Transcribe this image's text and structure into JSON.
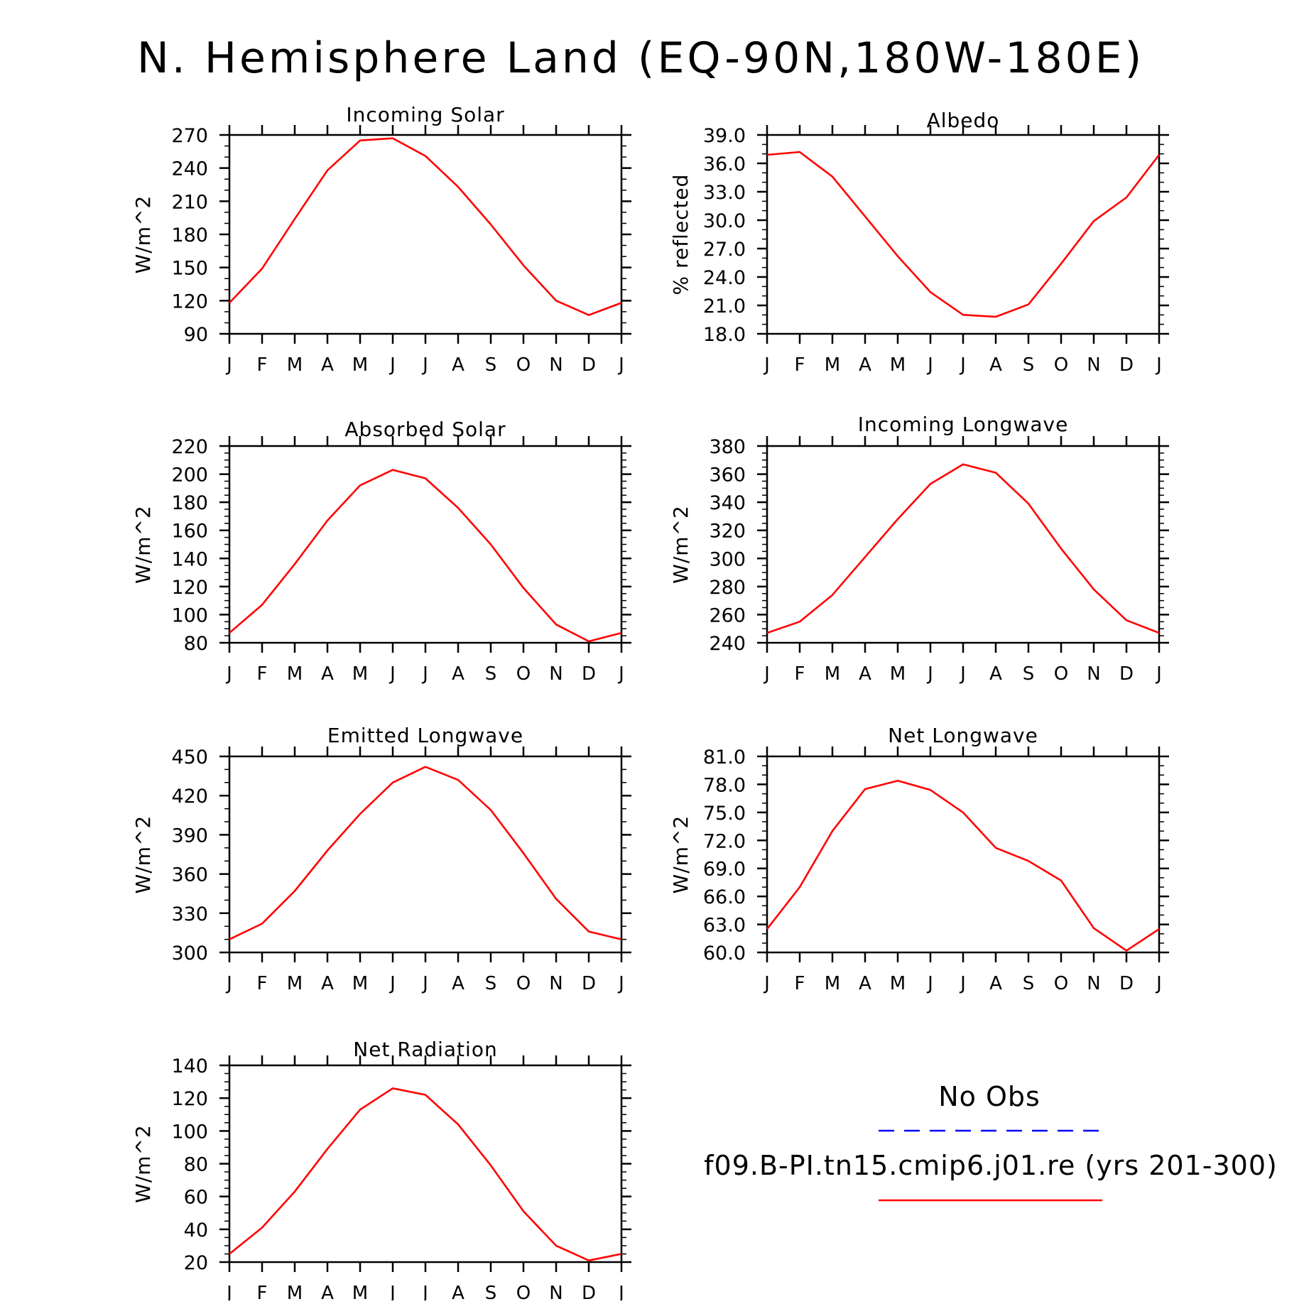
{
  "title": "N. Hemisphere Land (EQ-90N,180W-180E)",
  "colors": {
    "model": "#ff0000",
    "obs": "#0000ff",
    "axis": "#000000"
  },
  "months": [
    "J",
    "F",
    "M",
    "A",
    "M",
    "J",
    "J",
    "A",
    "S",
    "O",
    "N",
    "D",
    "J"
  ],
  "legend": {
    "obs_label": "No Obs",
    "model_label": "f09.B-PI.tn15.cmip6.j01.re (yrs 201-300)"
  },
  "chart_data": [
    {
      "type": "line",
      "title": "Incoming Solar",
      "ylabel": "W/m^2",
      "ylim": [
        90,
        270
      ],
      "yticks": [
        90,
        120,
        150,
        180,
        210,
        240,
        270
      ],
      "ytick_labels": [
        "90",
        "120",
        "150",
        "180",
        "210",
        "240",
        "270"
      ],
      "yminor": 10,
      "series": [
        {
          "values": [
            118,
            149,
            194,
            238,
            265,
            267,
            251,
            223,
            189,
            152,
            120,
            107,
            118
          ]
        }
      ]
    },
    {
      "type": "line",
      "title": "Albedo",
      "ylabel": "% reflected",
      "ylim": [
        18,
        39
      ],
      "yticks": [
        18,
        21,
        24,
        27,
        30,
        33,
        36,
        39
      ],
      "ytick_labels": [
        "18.0",
        "21.0",
        "24.0",
        "27.0",
        "30.0",
        "33.0",
        "36.0",
        "39.0"
      ],
      "yminor": 1,
      "series": [
        {
          "values": [
            36.9,
            37.2,
            34.6,
            30.4,
            26.2,
            22.4,
            20.0,
            19.8,
            21.1,
            25.4,
            29.9,
            32.4,
            36.9
          ]
        }
      ]
    },
    {
      "type": "line",
      "title": "Absorbed Solar",
      "ylabel": "W/m^2",
      "ylim": [
        80,
        220
      ],
      "yticks": [
        80,
        100,
        120,
        140,
        160,
        180,
        200,
        220
      ],
      "ytick_labels": [
        "80",
        "100",
        "120",
        "140",
        "160",
        "180",
        "200",
        "220"
      ],
      "yminor": 5,
      "series": [
        {
          "values": [
            87,
            107,
            136,
            167,
            192,
            203,
            197,
            176,
            150,
            119,
            93,
            81,
            87
          ]
        }
      ]
    },
    {
      "type": "line",
      "title": "Incoming Longwave",
      "ylabel": "W/m^2",
      "ylim": [
        240,
        380
      ],
      "yticks": [
        240,
        260,
        280,
        300,
        320,
        340,
        360,
        380
      ],
      "ytick_labels": [
        "240",
        "260",
        "280",
        "300",
        "320",
        "340",
        "360",
        "380"
      ],
      "yminor": 5,
      "series": [
        {
          "values": [
            247,
            255,
            274,
            301,
            328,
            353,
            367,
            361,
            339,
            307,
            278,
            256,
            247
          ]
        }
      ]
    },
    {
      "type": "line",
      "title": "Emitted Longwave",
      "ylabel": "W/m^2",
      "ylim": [
        300,
        450
      ],
      "yticks": [
        300,
        330,
        360,
        390,
        420,
        450
      ],
      "ytick_labels": [
        "300",
        "330",
        "360",
        "390",
        "420",
        "450"
      ],
      "yminor": 10,
      "series": [
        {
          "values": [
            310,
            322,
            347,
            378,
            406,
            430,
            442,
            432,
            409,
            376,
            341,
            316,
            310
          ]
        }
      ]
    },
    {
      "type": "line",
      "title": "Net Longwave",
      "ylabel": "W/m^2",
      "ylim": [
        60,
        81
      ],
      "yticks": [
        60,
        63,
        66,
        69,
        72,
        75,
        78,
        81
      ],
      "ytick_labels": [
        "60.0",
        "63.0",
        "66.0",
        "69.0",
        "72.0",
        "75.0",
        "78.0",
        "81.0"
      ],
      "yminor": 1,
      "series": [
        {
          "values": [
            62.5,
            67.0,
            73.0,
            77.5,
            78.4,
            77.4,
            75.0,
            71.2,
            69.8,
            67.7,
            62.6,
            60.2,
            62.5
          ]
        }
      ]
    },
    {
      "type": "line",
      "title": "Net Radiation",
      "ylabel": "W/m^2",
      "ylim": [
        20,
        140
      ],
      "yticks": [
        20,
        40,
        60,
        80,
        100,
        120,
        140
      ],
      "ytick_labels": [
        "20",
        "40",
        "60",
        "80",
        "100",
        "120",
        "140"
      ],
      "yminor": 5,
      "series": [
        {
          "values": [
            25,
            41,
            63,
            89,
            113,
            126,
            122,
            104,
            79,
            51,
            30,
            21,
            25
          ]
        }
      ]
    }
  ]
}
